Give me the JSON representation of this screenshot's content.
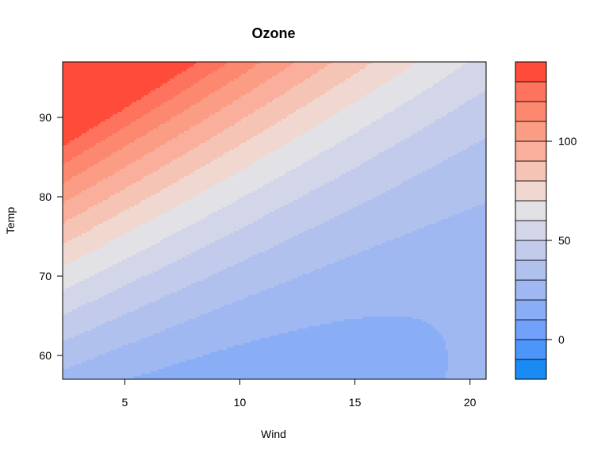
{
  "chart_data": {
    "type": "heatmap",
    "subtype": "filled-contour",
    "title": "Ozone",
    "xlabel": "Wind",
    "ylabel": "Temp",
    "xlim": [
      2.3,
      20.7
    ],
    "ylim": [
      57,
      97
    ],
    "xticks": [
      5,
      10,
      15,
      20
    ],
    "yticks": [
      60,
      70,
      80,
      90
    ],
    "colorbar": {
      "range": [
        -20,
        140
      ],
      "levels": [
        -20,
        -10,
        0,
        10,
        20,
        30,
        40,
        50,
        60,
        70,
        80,
        90,
        100,
        110,
        120,
        130,
        140
      ],
      "ticks": [
        0,
        50,
        100
      ],
      "colors": [
        "#1a8af5",
        "#4c96fa",
        "#71a1fb",
        "#8aaef5",
        "#9fb8f1",
        "#b1c1ee",
        "#c2cbeb",
        "#d2d6e8",
        "#e2e2e6",
        "#f0d8d0",
        "#f6c4b5",
        "#f9af9b",
        "#fb9c85",
        "#fc8870",
        "#fd735d",
        "#ff4b3a"
      ]
    }
  }
}
